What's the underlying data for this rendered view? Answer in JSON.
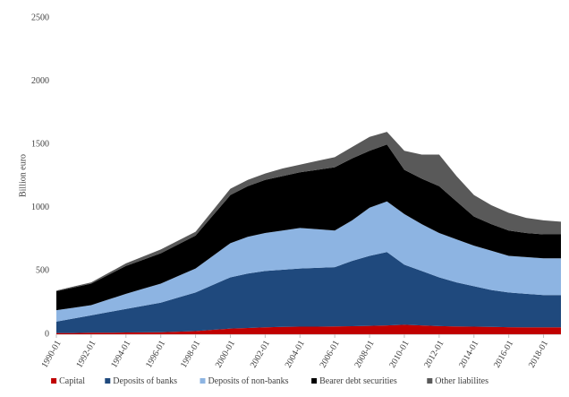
{
  "chart_data": {
    "type": "stacked-area",
    "y_label": "Billion euro",
    "categories": [
      "1990-01",
      null,
      "1992-01",
      null,
      "1994-01",
      null,
      "1996-01",
      null,
      "1998-01",
      null,
      "2000-01",
      null,
      "2002-01",
      null,
      "2004-01",
      null,
      "2006-01",
      null,
      "2008-01",
      null,
      "2010-01",
      null,
      "2012-01",
      null,
      "2014-01",
      null,
      "2016-01",
      null,
      "2018-01",
      null
    ],
    "series": [
      {
        "name": "Capital",
        "color": "#c00000",
        "values": [
          10,
          10,
          12,
          12,
          14,
          15,
          16,
          20,
          25,
          35,
          45,
          50,
          55,
          58,
          60,
          60,
          62,
          64,
          66,
          70,
          75,
          70,
          65,
          62,
          60,
          58,
          56,
          55,
          55,
          55
        ]
      },
      {
        "name": "Deposits of banks",
        "color": "#1f497d",
        "values": [
          90,
          115,
          138,
          163,
          186,
          210,
          234,
          270,
          305,
          355,
          405,
          430,
          445,
          452,
          460,
          465,
          468,
          516,
          554,
          580,
          475,
          430,
          385,
          348,
          320,
          292,
          274,
          265,
          255,
          255
        ]
      },
      {
        "name": "Deposits of non-banks",
        "color": "#8db4e2",
        "values": [
          90,
          85,
          80,
          100,
          120,
          135,
          150,
          170,
          190,
          230,
          270,
          290,
          300,
          310,
          320,
          305,
          290,
          320,
          380,
          400,
          400,
          370,
          350,
          340,
          320,
          310,
          290,
          290,
          290,
          290
        ]
      },
      {
        "name": "Bearer debt securities",
        "color": "#000000",
        "values": [
          150,
          160,
          170,
          195,
          220,
          230,
          240,
          250,
          260,
          320,
          380,
          400,
          420,
          430,
          440,
          470,
          500,
          490,
          450,
          450,
          350,
          360,
          370,
          300,
          230,
          210,
          200,
          190,
          190,
          190
        ]
      },
      {
        "name": "Other liabilites",
        "color": "#595959",
        "values": [
          5,
          8,
          10,
          15,
          20,
          25,
          30,
          30,
          30,
          40,
          50,
          50,
          50,
          60,
          60,
          70,
          80,
          90,
          110,
          100,
          150,
          190,
          250,
          200,
          170,
          150,
          140,
          120,
          110,
          100
        ]
      }
    ],
    "ylim": [
      0,
      2500
    ],
    "yticks": [
      0,
      500,
      1000,
      1500,
      2000,
      2500
    ],
    "legend": "bottom"
  }
}
